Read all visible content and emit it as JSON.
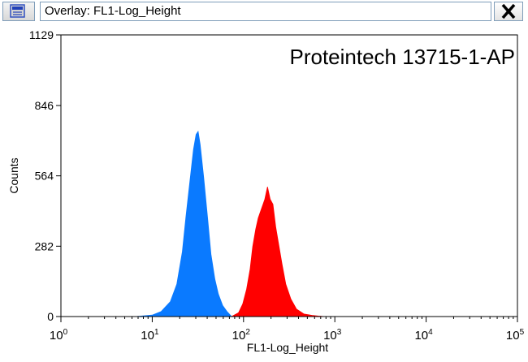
{
  "window": {
    "title": "Overlay: FL1-Log_Height",
    "app_icon": "histogram-window-icon",
    "close_icon": "close-icon"
  },
  "annotation": "Proteintech 13715-1-AP",
  "chart_data": {
    "type": "area",
    "title": "",
    "xlabel": "FL1-Log_Height",
    "ylabel": "Counts",
    "x_scale": "log",
    "xlim": [
      1,
      100000
    ],
    "ylim": [
      0,
      1129
    ],
    "x_ticks": [
      {
        "value": 1,
        "base": "10",
        "exp": "0"
      },
      {
        "value": 10,
        "base": "10",
        "exp": "1"
      },
      {
        "value": 100,
        "base": "10",
        "exp": "2"
      },
      {
        "value": 1000,
        "base": "10",
        "exp": "3"
      },
      {
        "value": 10000,
        "base": "10",
        "exp": "4"
      },
      {
        "value": 100000,
        "base": "10",
        "exp": "5"
      }
    ],
    "y_ticks": [
      0,
      282,
      564,
      846,
      1129
    ],
    "grid": false,
    "legend": "none",
    "series": [
      {
        "color": "#0a7aff",
        "x": [
          6.6,
          10,
          12.5,
          15.8,
          18.6,
          21.4,
          23.4,
          25.8,
          28.3,
          30.2,
          31.8,
          33.5,
          36.6,
          40.5,
          44,
          48.5,
          53,
          59,
          66,
          74
        ],
        "y": [
          0,
          6,
          20,
          60,
          130,
          260,
          400,
          540,
          670,
          730,
          742,
          690,
          560,
          390,
          250,
          150,
          90,
          45,
          20,
          0
        ]
      },
      {
        "color": "#ff0000",
        "x": [
          74,
          88,
          98,
          108,
          118,
          126,
          136,
          145,
          153,
          162,
          171,
          183,
          196,
          210,
          225,
          240,
          264,
          290,
          330,
          380,
          460,
          560,
          660,
          780
        ],
        "y": [
          0,
          15,
          50,
          110,
          190,
          280,
          350,
          395,
          420,
          445,
          470,
          520,
          470,
          450,
          360,
          300,
          210,
          130,
          70,
          30,
          10,
          5,
          2,
          0
        ]
      }
    ]
  }
}
